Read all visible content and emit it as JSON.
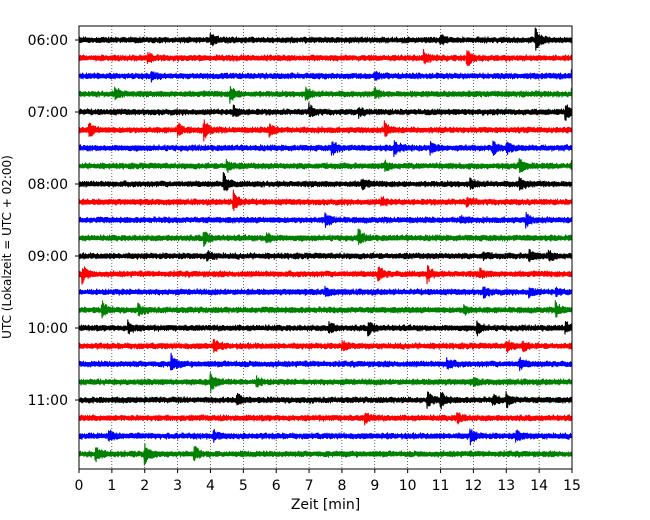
{
  "chart_data": {
    "type": "line",
    "title": "",
    "xlabel": "Zeit  [min]",
    "ylabel": "UTC (Lokalzeit = UTC + 02:00)",
    "xlim": [
      0,
      15
    ],
    "x_ticks": [
      0,
      1,
      2,
      3,
      4,
      5,
      6,
      7,
      8,
      9,
      10,
      11,
      12,
      13,
      14,
      15
    ],
    "y_tick_labels": [
      "06:00",
      "07:00",
      "08:00",
      "09:00",
      "10:00",
      "11:00"
    ],
    "trace_minutes": 15,
    "grid": "vertical dotted lines at each minute",
    "color_cycle": [
      "#000000",
      "#ff0000",
      "#0000ff",
      "#008000"
    ],
    "traces": [
      {
        "start": "06:00",
        "events": [
          [
            4.0,
            0.6
          ],
          [
            11.0,
            0.4
          ],
          [
            13.9,
            1.0
          ]
        ]
      },
      {
        "start": "06:15",
        "events": [
          [
            2.1,
            0.5
          ],
          [
            10.5,
            0.6
          ],
          [
            11.8,
            0.9
          ]
        ]
      },
      {
        "start": "06:30",
        "events": [
          [
            2.2,
            0.4
          ],
          [
            9.0,
            0.3
          ],
          [
            15.0,
            0.9
          ]
        ]
      },
      {
        "start": "06:45",
        "events": [
          [
            1.1,
            0.6
          ],
          [
            4.6,
            0.8
          ],
          [
            6.9,
            0.7
          ],
          [
            9.0,
            0.4
          ],
          [
            15.0,
            0.9
          ]
        ]
      },
      {
        "start": "07:00",
        "events": [
          [
            4.7,
            0.5
          ],
          [
            7.0,
            0.6
          ],
          [
            8.5,
            0.4
          ],
          [
            14.8,
            0.8
          ]
        ]
      },
      {
        "start": "07:15",
        "events": [
          [
            0.3,
            0.7
          ],
          [
            3.0,
            0.6
          ],
          [
            3.8,
            0.9
          ],
          [
            5.8,
            0.6
          ],
          [
            9.3,
            0.7
          ]
        ]
      },
      {
        "start": "07:30",
        "events": [
          [
            7.7,
            0.7
          ],
          [
            9.6,
            0.8
          ],
          [
            10.7,
            0.6
          ],
          [
            12.6,
            0.6
          ],
          [
            13.0,
            0.5
          ]
        ]
      },
      {
        "start": "07:45",
        "events": [
          [
            4.5,
            0.5
          ],
          [
            9.3,
            0.4
          ],
          [
            13.4,
            0.7
          ],
          [
            15.0,
            0.6
          ]
        ]
      },
      {
        "start": "08:00",
        "events": [
          [
            4.4,
            1.0
          ],
          [
            8.6,
            0.5
          ],
          [
            11.9,
            0.6
          ],
          [
            13.4,
            0.7
          ]
        ]
      },
      {
        "start": "08:15",
        "events": [
          [
            4.7,
            1.0
          ],
          [
            9.2,
            0.4
          ],
          [
            11.8,
            0.3
          ]
        ]
      },
      {
        "start": "08:30",
        "events": [
          [
            7.5,
            0.7
          ],
          [
            11.6,
            0.3
          ],
          [
            13.6,
            0.6
          ]
        ]
      },
      {
        "start": "08:45",
        "events": [
          [
            3.8,
            0.7
          ],
          [
            5.7,
            0.5
          ],
          [
            8.5,
            0.8
          ]
        ]
      },
      {
        "start": "09:00",
        "events": [
          [
            3.9,
            0.4
          ],
          [
            12.3,
            0.3
          ],
          [
            13.7,
            0.6
          ],
          [
            14.3,
            0.4
          ]
        ]
      },
      {
        "start": "09:15",
        "events": [
          [
            0.1,
            0.8
          ],
          [
            9.1,
            0.8
          ],
          [
            10.6,
            0.7
          ],
          [
            12.2,
            0.4
          ]
        ]
      },
      {
        "start": "09:30",
        "events": [
          [
            7.5,
            0.4
          ],
          [
            12.3,
            0.5
          ],
          [
            13.7,
            0.4
          ],
          [
            14.5,
            0.3
          ]
        ]
      },
      {
        "start": "09:45",
        "events": [
          [
            0.7,
            0.7
          ],
          [
            1.8,
            0.5
          ],
          [
            11.7,
            0.4
          ],
          [
            14.5,
            0.8
          ]
        ]
      },
      {
        "start": "10:00",
        "events": [
          [
            1.5,
            0.6
          ],
          [
            7.6,
            0.6
          ],
          [
            8.8,
            0.7
          ],
          [
            12.1,
            0.6
          ],
          [
            14.8,
            0.5
          ]
        ]
      },
      {
        "start": "10:15",
        "events": [
          [
            4.1,
            0.6
          ],
          [
            8.0,
            0.4
          ],
          [
            13.0,
            0.6
          ],
          [
            13.5,
            0.4
          ]
        ]
      },
      {
        "start": "10:30",
        "events": [
          [
            2.8,
            0.8
          ],
          [
            11.2,
            0.5
          ],
          [
            13.4,
            0.5
          ]
        ]
      },
      {
        "start": "10:45",
        "events": [
          [
            4.0,
            0.9
          ],
          [
            5.4,
            0.4
          ],
          [
            12.0,
            0.3
          ]
        ]
      },
      {
        "start": "11:00",
        "events": [
          [
            4.8,
            0.6
          ],
          [
            10.6,
            0.7
          ],
          [
            11.0,
            0.8
          ],
          [
            12.6,
            0.4
          ],
          [
            13.0,
            0.7
          ]
        ]
      },
      {
        "start": "11:15",
        "events": [
          [
            8.7,
            0.5
          ],
          [
            11.5,
            0.6
          ]
        ]
      },
      {
        "start": "11:30",
        "events": [
          [
            0.9,
            0.6
          ],
          [
            4.1,
            0.4
          ],
          [
            11.9,
            0.7
          ],
          [
            13.3,
            0.5
          ]
        ]
      },
      {
        "start": "11:45",
        "events": [
          [
            0.5,
            0.8
          ],
          [
            2.0,
            0.9
          ],
          [
            3.5,
            0.7
          ]
        ]
      }
    ]
  }
}
